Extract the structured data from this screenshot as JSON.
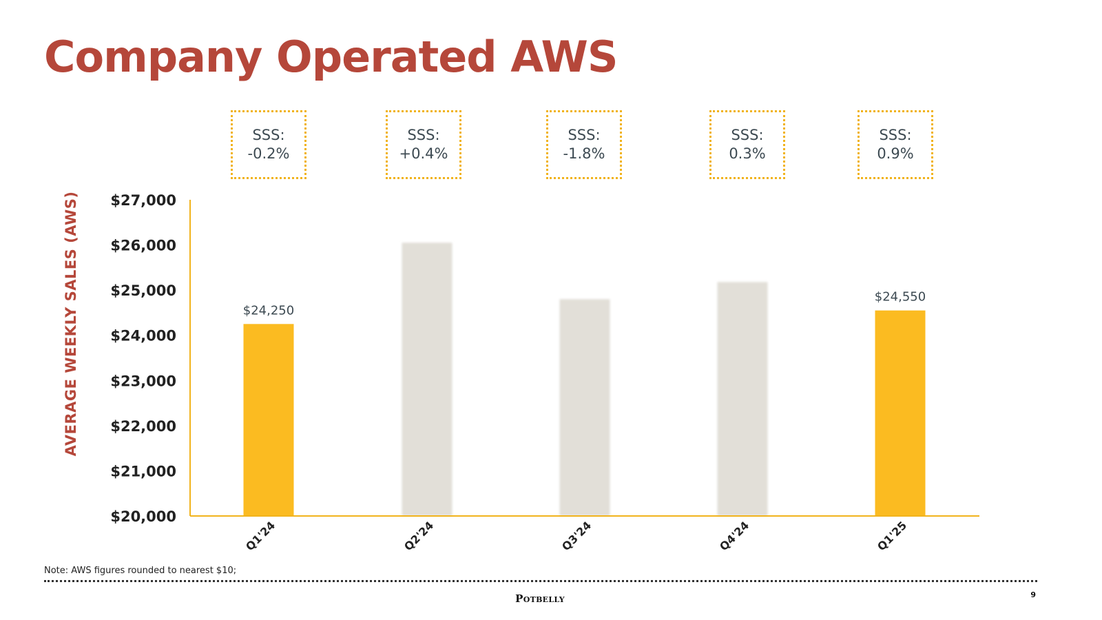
{
  "slide": {
    "title": "Company Operated AWS",
    "note": "Note: AWS figures rounded to nearest $10;",
    "page_number": "9",
    "logo_text": "Potbelly"
  },
  "sss_boxes": [
    {
      "label": "SSS:",
      "value": "-0.2%"
    },
    {
      "label": "SSS:",
      "value": "+0.4%"
    },
    {
      "label": "SSS:",
      "value": "-1.8%"
    },
    {
      "label": "SSS:",
      "value": "0.3%"
    },
    {
      "label": "SSS:",
      "value": "0.9%"
    }
  ],
  "colors": {
    "title": "#b5473a",
    "highlight_bar": "#fbbb21",
    "muted_bar": "#e2dfd8",
    "axis": "#f1b31c",
    "box_border": "#f1b31c"
  },
  "chart_data": {
    "type": "bar",
    "ylabel": "AVERAGE WEEKLY SALES (AWS)",
    "xlabel": "",
    "ylim": [
      20000,
      27000
    ],
    "yticks": [
      20000,
      21000,
      22000,
      23000,
      24000,
      25000,
      26000,
      27000
    ],
    "ytick_labels": [
      "$20,000",
      "$21,000",
      "$22,000",
      "$23,000",
      "$24,000",
      "$25,000",
      "$26,000",
      "$27,000"
    ],
    "categories": [
      "Q1'24",
      "Q2'24",
      "Q3'24",
      "Q4'24",
      "Q1'25"
    ],
    "values": [
      24250,
      26050,
      24800,
      25180,
      24550
    ],
    "highlighted": [
      true,
      false,
      false,
      false,
      true
    ],
    "data_labels": [
      "$24,250",
      "",
      "",
      "",
      "$24,550"
    ],
    "grid": false
  }
}
